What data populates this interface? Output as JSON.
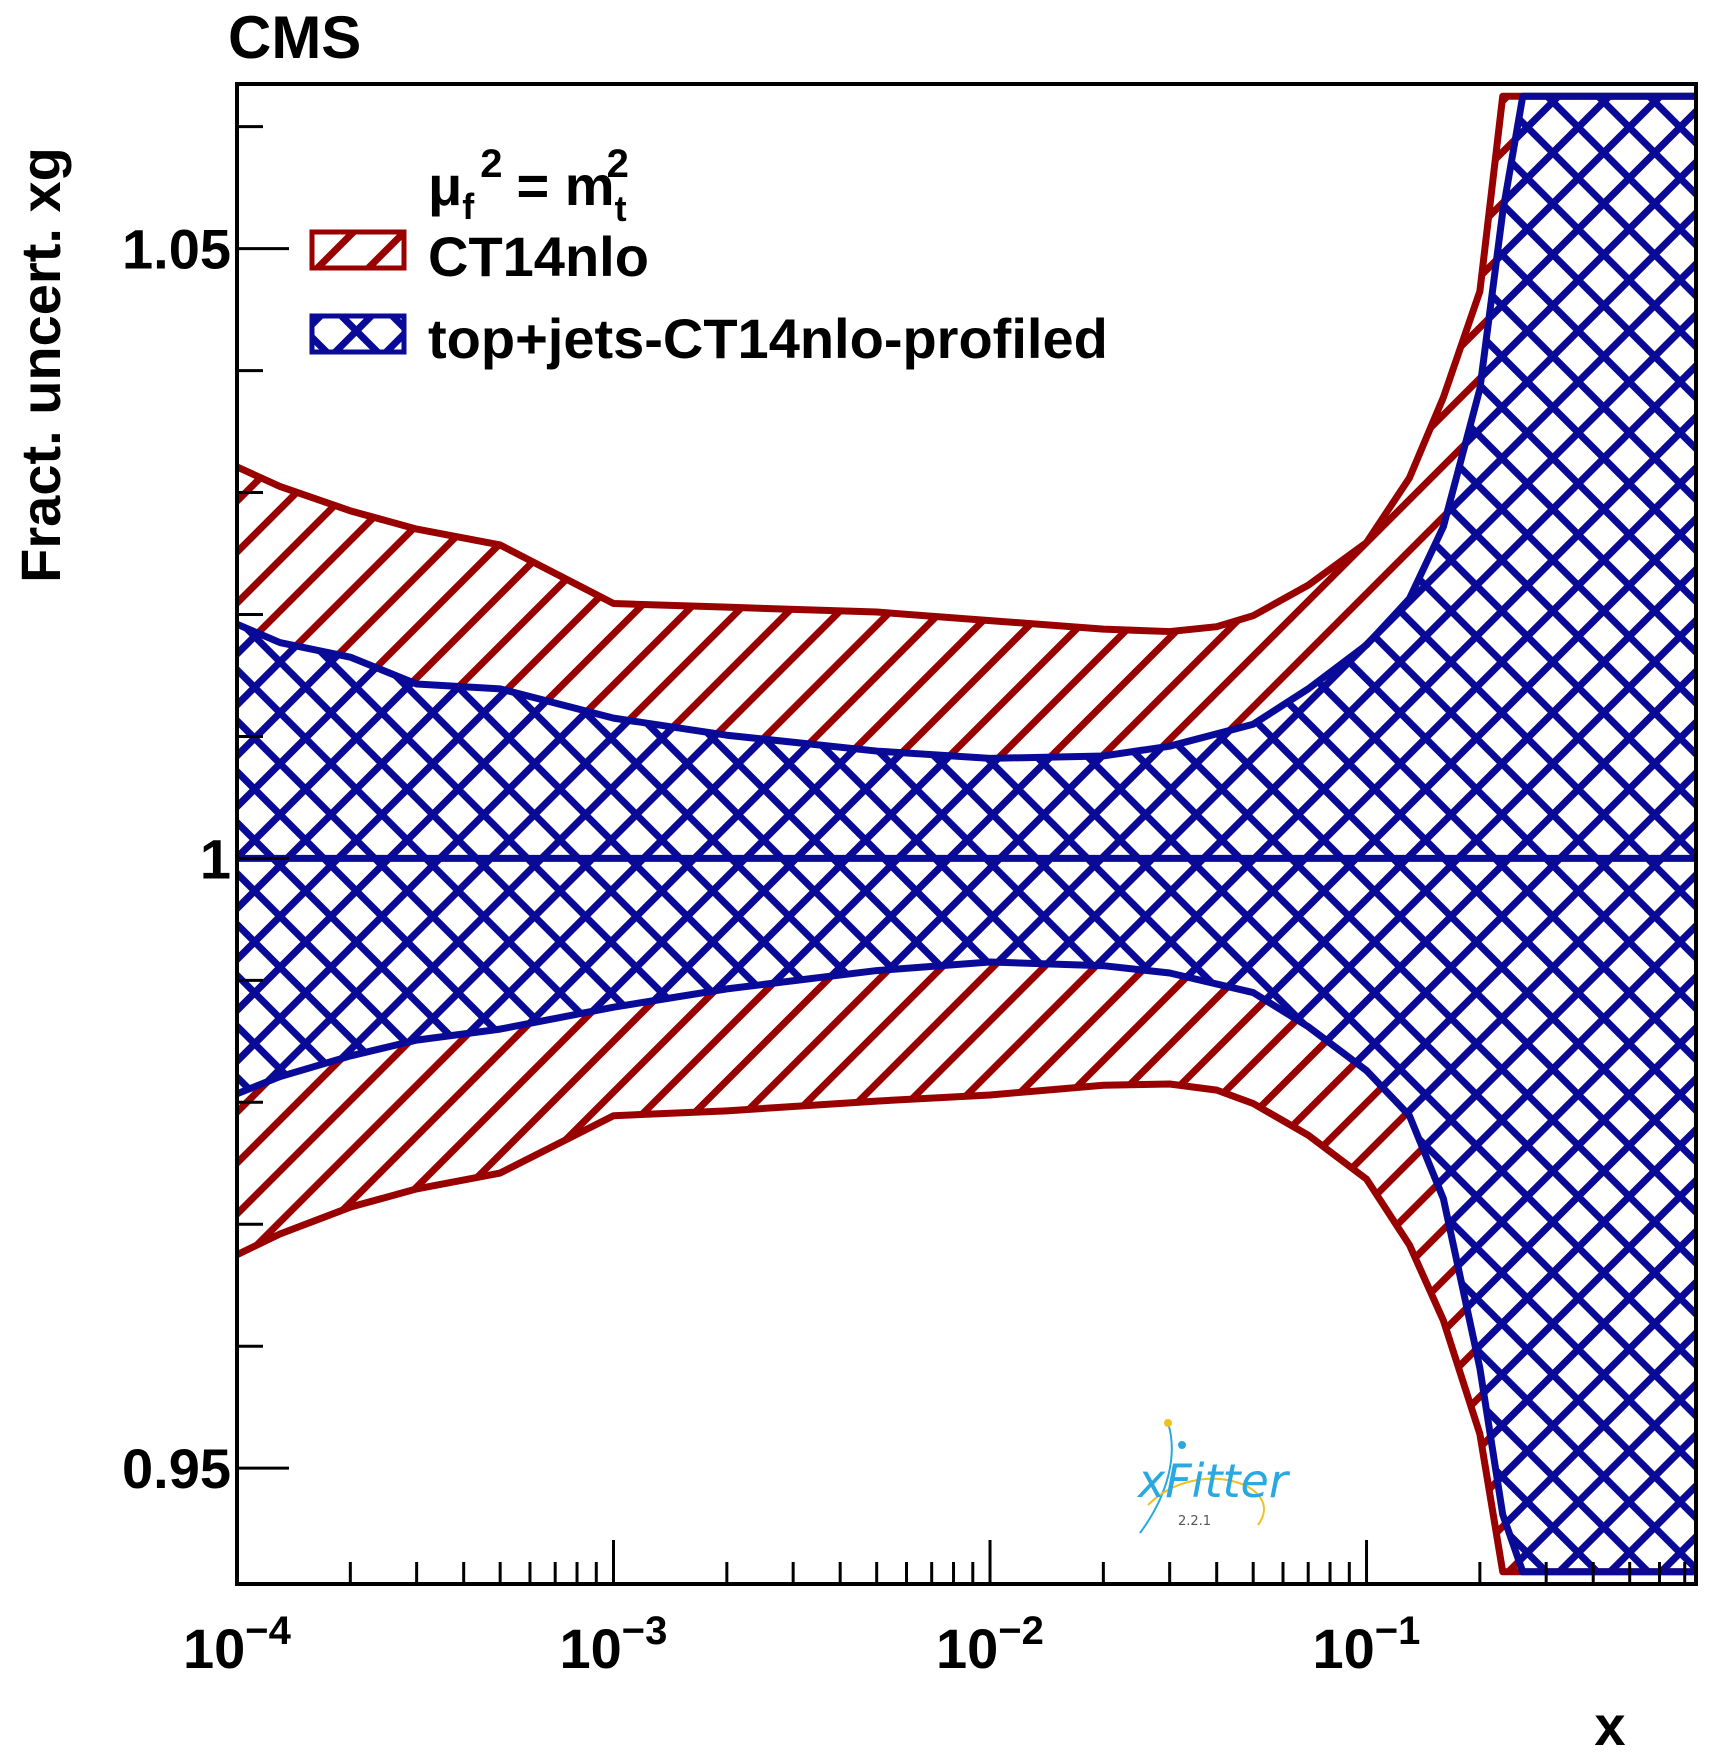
{
  "experiment_label": "CMS",
  "logo": {
    "name": "xFitter",
    "version": "2.2.1"
  },
  "legend": {
    "scale_label": {
      "mu": "μ",
      "f": "f",
      "exp": "2",
      "eq": "= m",
      "t": "t",
      "t_exp": "2"
    },
    "entries": [
      {
        "label": "CT14nlo",
        "color": "#990000"
      },
      {
        "label": "top+jets-CT14nlo-profiled",
        "color": "#0a0a99"
      }
    ]
  },
  "chart_data": {
    "type": "area",
    "xlabel": "x",
    "ylabel": "Fract. uncert. xg",
    "xscale": "log",
    "xlim": [
      0.0001,
      0.75
    ],
    "ylim": [
      0.9405,
      1.0635
    ],
    "x_ticks": [
      {
        "value": 0.0001,
        "base": "10",
        "exp": "−4"
      },
      {
        "value": 0.001,
        "base": "10",
        "exp": "−3"
      },
      {
        "value": 0.01,
        "base": "10",
        "exp": "−2"
      },
      {
        "value": 0.1,
        "base": "10",
        "exp": "−1"
      }
    ],
    "y_ticks": [
      {
        "value": 0.95,
        "label": "0.95"
      },
      {
        "value": 1.0,
        "label": "1"
      },
      {
        "value": 1.05,
        "label": "1.05"
      }
    ],
    "y_minor_ticks": [
      0.96,
      0.97,
      0.98,
      0.99,
      1.01,
      1.02,
      1.03,
      1.04,
      1.06
    ],
    "reference_line": 1.0,
    "series": [
      {
        "name": "CT14nlo",
        "color": "#990000",
        "hatch": "single",
        "upper": {
          "x": [
            0.0001,
            0.00013,
            0.0002,
            0.0003,
            0.0005,
            0.001,
            0.002,
            0.005,
            0.01,
            0.02,
            0.03,
            0.04,
            0.05,
            0.07,
            0.1,
            0.13,
            0.16,
            0.2,
            0.23,
            0.3,
            0.5,
            0.75
          ],
          "y": [
            1.0321,
            1.0305,
            1.0285,
            1.027,
            1.0257,
            1.0209,
            1.0206,
            1.0202,
            1.0195,
            1.0188,
            1.0186,
            1.019,
            1.0199,
            1.0224,
            1.0259,
            1.0312,
            1.0378,
            1.0465,
            1.0625,
            1.0625,
            1.0625,
            1.0625
          ]
        },
        "lower": {
          "x": [
            0.0001,
            0.00013,
            0.0002,
            0.0003,
            0.0005,
            0.001,
            0.002,
            0.005,
            0.01,
            0.02,
            0.03,
            0.04,
            0.05,
            0.07,
            0.1,
            0.13,
            0.16,
            0.2,
            0.23,
            0.3,
            0.5,
            0.75
          ],
          "y": [
            0.9675,
            0.9692,
            0.9714,
            0.9729,
            0.9742,
            0.9789,
            0.9793,
            0.9801,
            0.9806,
            0.9814,
            0.9815,
            0.981,
            0.9799,
            0.9773,
            0.9737,
            0.9683,
            0.9621,
            0.9528,
            0.9415,
            0.9415,
            0.9415,
            0.9415
          ]
        }
      },
      {
        "name": "top+jets-CT14nlo-profiled",
        "color": "#0a0a99",
        "hatch": "cross",
        "upper": {
          "x": [
            0.0001,
            0.00013,
            0.0002,
            0.0003,
            0.0005,
            0.001,
            0.002,
            0.005,
            0.01,
            0.02,
            0.03,
            0.05,
            0.07,
            0.1,
            0.13,
            0.16,
            0.2,
            0.23,
            0.26,
            0.3,
            0.5,
            0.75
          ],
          "y": [
            1.0192,
            1.0177,
            1.0165,
            1.0143,
            1.0139,
            1.0115,
            1.0101,
            1.0088,
            1.0082,
            1.0084,
            1.0092,
            1.011,
            1.0139,
            1.0175,
            1.0213,
            1.0272,
            1.0385,
            1.053,
            1.0625,
            1.0625,
            1.0625,
            1.0625
          ]
        },
        "lower": {
          "x": [
            0.0001,
            0.00013,
            0.0002,
            0.0003,
            0.0005,
            0.001,
            0.002,
            0.005,
            0.01,
            0.02,
            0.03,
            0.05,
            0.07,
            0.1,
            0.13,
            0.16,
            0.2,
            0.23,
            0.26,
            0.3,
            0.5,
            0.75
          ],
          "y": [
            0.9807,
            0.9821,
            0.9838,
            0.9851,
            0.986,
            0.9878,
            0.9893,
            0.9908,
            0.9915,
            0.9912,
            0.9906,
            0.989,
            0.9862,
            0.9826,
            0.9789,
            0.9721,
            0.9582,
            0.9462,
            0.9415,
            0.9415,
            0.9415,
            0.9415
          ]
        }
      }
    ]
  }
}
